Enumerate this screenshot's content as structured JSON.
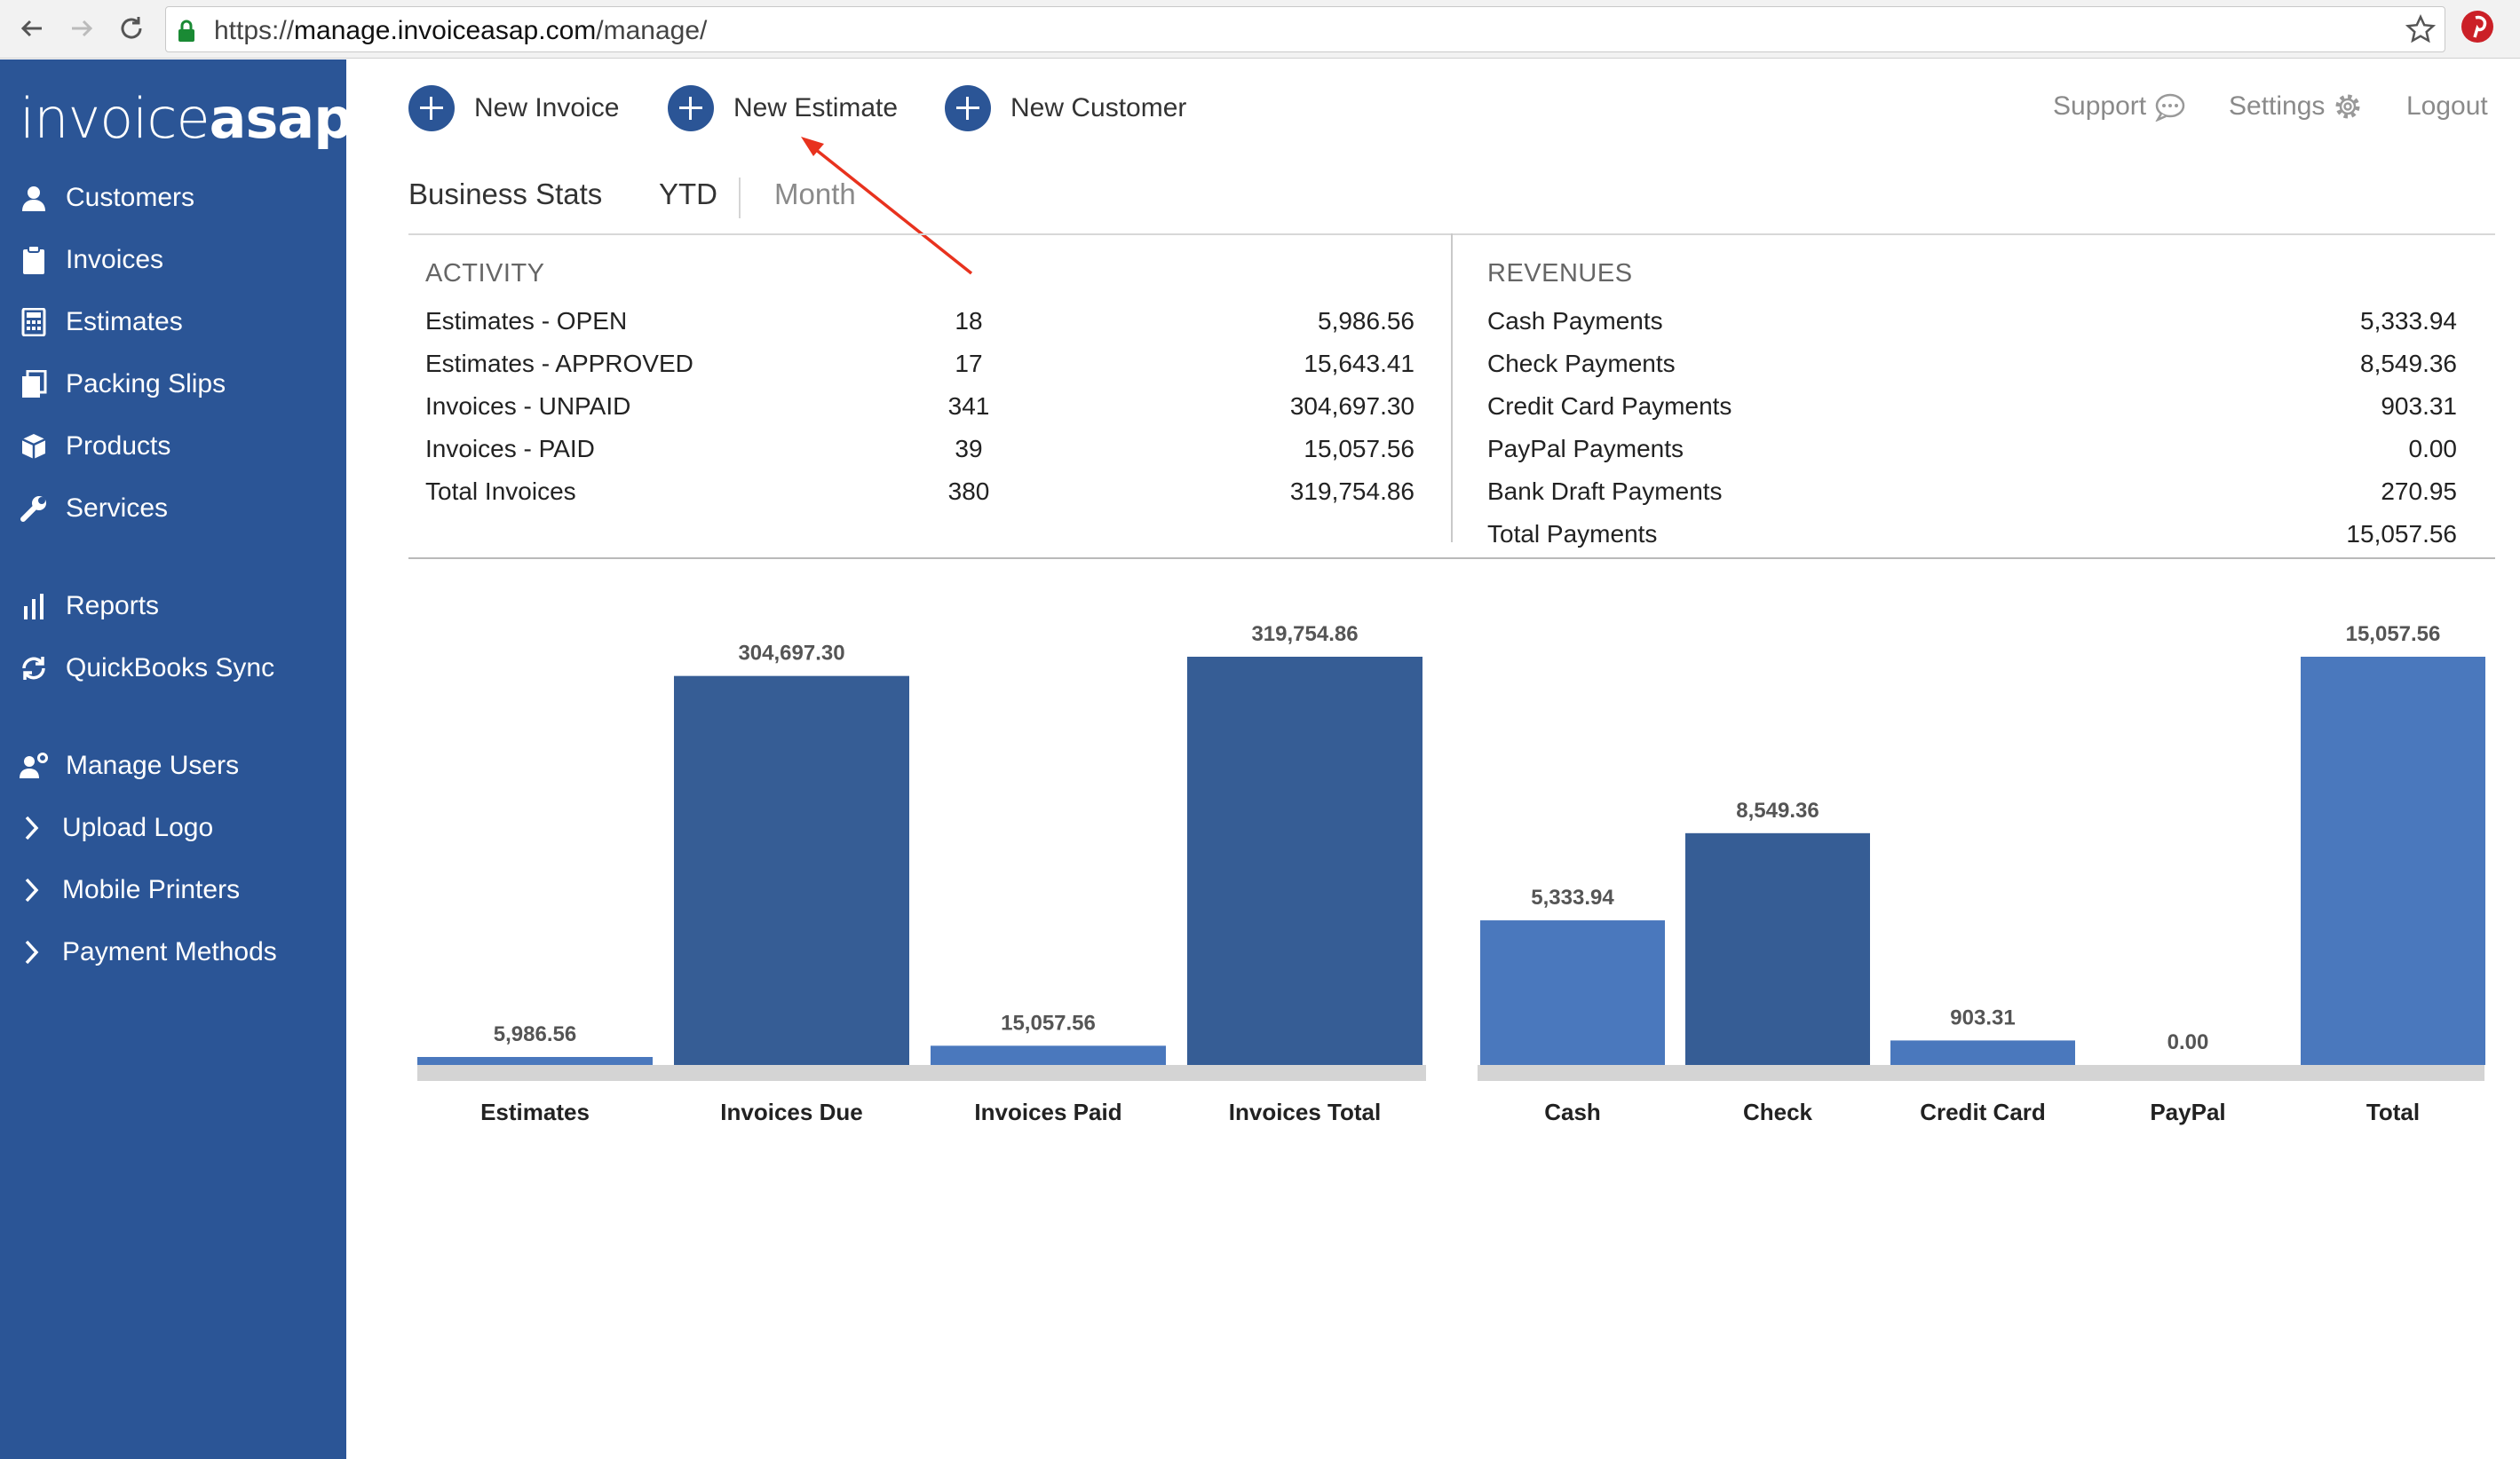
{
  "browser": {
    "url_scheme": "https://",
    "url_host": "manage.invoiceasap.com",
    "url_path": "/manage/",
    "icons": [
      "back-arrow-icon",
      "forward-arrow-icon",
      "reload-icon",
      "lock-icon",
      "star-icon",
      "pinterest-icon"
    ]
  },
  "brand": {
    "logo_part1": "invoice",
    "logo_part2": "asap",
    "sidebar_color": "#2b5596",
    "accent": "#2b5596"
  },
  "sidebar": {
    "items": [
      {
        "label": "Customers",
        "icon": "user-icon"
      },
      {
        "label": "Invoices",
        "icon": "clipboard-icon"
      },
      {
        "label": "Estimates",
        "icon": "calculator-icon"
      },
      {
        "label": "Packing Slips",
        "icon": "stack-icon"
      },
      {
        "label": "Products",
        "icon": "box-icon"
      },
      {
        "label": "Services",
        "icon": "wrench-icon"
      },
      {
        "label": "Reports",
        "icon": "bar-chart-icon"
      },
      {
        "label": "QuickBooks Sync",
        "icon": "sync-icon"
      },
      {
        "label": "Manage Users",
        "icon": "user-gear-icon"
      },
      {
        "label": "Upload Logo",
        "icon": "chevron-right-icon"
      },
      {
        "label": "Mobile Printers",
        "icon": "chevron-right-icon"
      },
      {
        "label": "Payment Methods",
        "icon": "chevron-right-icon"
      }
    ]
  },
  "actions": {
    "new_invoice": "New Invoice",
    "new_estimate": "New Estimate",
    "new_customer": "New Customer"
  },
  "header_links": {
    "support": "Support",
    "settings": "Settings",
    "logout": "Logout"
  },
  "tabs": {
    "title": "Business Stats",
    "ytd": "YTD",
    "month": "Month"
  },
  "activity": {
    "heading": "ACTIVITY",
    "rows": [
      {
        "label": "Estimates - OPEN",
        "count": "18",
        "amount": "5,986.56"
      },
      {
        "label": "Estimates - APPROVED",
        "count": "17",
        "amount": "15,643.41"
      },
      {
        "label": "Invoices - UNPAID",
        "count": "341",
        "amount": "304,697.30"
      },
      {
        "label": "Invoices - PAID",
        "count": "39",
        "amount": "15,057.56"
      },
      {
        "label": "Total Invoices",
        "count": "380",
        "amount": "319,754.86"
      }
    ]
  },
  "revenues": {
    "heading": "REVENUES",
    "rows": [
      {
        "label": "Cash Payments",
        "amount": "5,333.94"
      },
      {
        "label": "Check Payments",
        "amount": "8,549.36"
      },
      {
        "label": "Credit Card Payments",
        "amount": "903.31"
      },
      {
        "label": "PayPal Payments",
        "amount": "0.00"
      },
      {
        "label": "Bank Draft Payments",
        "amount": "270.95"
      },
      {
        "label": "Total Payments",
        "amount": "15,057.56"
      }
    ]
  },
  "chart_data": [
    {
      "type": "bar",
      "categories": [
        "Estimates",
        "Invoices Due",
        "Invoices Paid",
        "Invoices Total"
      ],
      "values": [
        5986.56,
        304697.3,
        15057.56,
        319754.86
      ],
      "value_labels": [
        "5,986.56",
        "304,697.30",
        "15,057.56",
        "319,754.86"
      ],
      "colors": [
        "#4a78bd",
        "#365d95",
        "#4a78bd",
        "#365d95"
      ],
      "ylim": [
        0,
        319754.86
      ],
      "grid": false,
      "legend": "none"
    },
    {
      "type": "bar",
      "categories": [
        "Cash",
        "Check",
        "Credit Card",
        "PayPal",
        "Total"
      ],
      "values": [
        5333.94,
        8549.36,
        903.31,
        0.0,
        15057.56
      ],
      "value_labels": [
        "5,333.94",
        "8,549.36",
        "903.31",
        "0.00",
        "15,057.56"
      ],
      "colors": [
        "#4a78bd",
        "#365d95",
        "#4a78bd",
        "#365d95",
        "#4a78bd"
      ],
      "ylim": [
        0,
        15057.56
      ],
      "grid": false,
      "legend": "none"
    }
  ]
}
